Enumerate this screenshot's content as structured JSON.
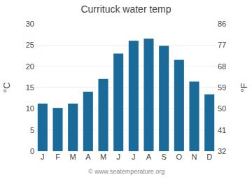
{
  "chart_data": {
    "type": "bar",
    "title": "Currituck water temp",
    "categories": [
      "J",
      "F",
      "M",
      "A",
      "M",
      "J",
      "J",
      "A",
      "S",
      "O",
      "N",
      "D"
    ],
    "values": [
      11.2,
      10.2,
      11.2,
      14.0,
      17.0,
      23.0,
      26.0,
      26.5,
      24.8,
      21.5,
      16.4,
      13.4
    ],
    "color": "#1a6a9a",
    "ylabel": "°C",
    "y2label": "°F",
    "ylim": [
      0,
      30
    ],
    "yticks": [
      0,
      5,
      10,
      15,
      20,
      25,
      30
    ],
    "y2lim": [
      32,
      86
    ],
    "y2ticks": [
      32,
      41,
      50,
      59,
      68,
      77,
      86
    ],
    "grid": true,
    "annotations": [
      "© www.seatemperature.org"
    ]
  }
}
